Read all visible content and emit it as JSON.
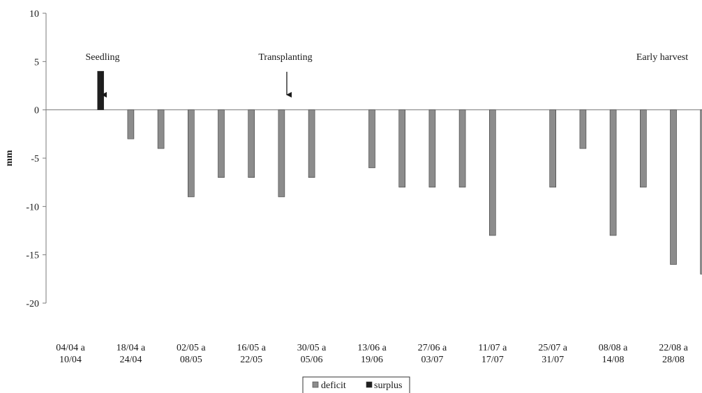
{
  "chart_data": {
    "type": "bar",
    "ylabel": "mm",
    "ylim": [
      -20,
      10
    ],
    "yticks": [
      10,
      5,
      0,
      -5,
      -10,
      -15,
      -20
    ],
    "x_tick_labels": [
      [
        "04/04 a",
        "10/04"
      ],
      [
        "18/04 a",
        "24/04"
      ],
      [
        "02/05 a",
        "08/05"
      ],
      [
        "16/05 a",
        "22/05"
      ],
      [
        "30/05 a",
        "05/06"
      ],
      [
        "13/06 a",
        "19/06"
      ],
      [
        "27/06 a",
        "03/07"
      ],
      [
        "11/07 a",
        "17/07"
      ],
      [
        "25/07 a",
        "31/07"
      ],
      [
        "08/08 a",
        "14/08"
      ],
      [
        "22/08 a",
        "28/08"
      ]
    ],
    "series": [
      {
        "name": "deficit",
        "color": "#8c8c8c",
        "values": [
          0,
          0,
          -3,
          -4,
          -9,
          -7,
          -7,
          -9,
          -7,
          0,
          -6,
          -8,
          -8,
          -8,
          -13,
          0,
          -8,
          -4,
          -13,
          -8,
          -16,
          -17
        ]
      },
      {
        "name": "surplus",
        "color": "#1f1f1f",
        "values": [
          0,
          4,
          0,
          0,
          0,
          0,
          0,
          0,
          0,
          0,
          0,
          0,
          0,
          0,
          0,
          0,
          0,
          0,
          0,
          0,
          0,
          0
        ]
      }
    ],
    "annotations": [
      {
        "text": "Seedling",
        "period": 1
      },
      {
        "text": "Transplanting",
        "period": 7
      },
      {
        "text": "Early harvest",
        "period": 21
      }
    ],
    "legend_position": "bottom"
  }
}
